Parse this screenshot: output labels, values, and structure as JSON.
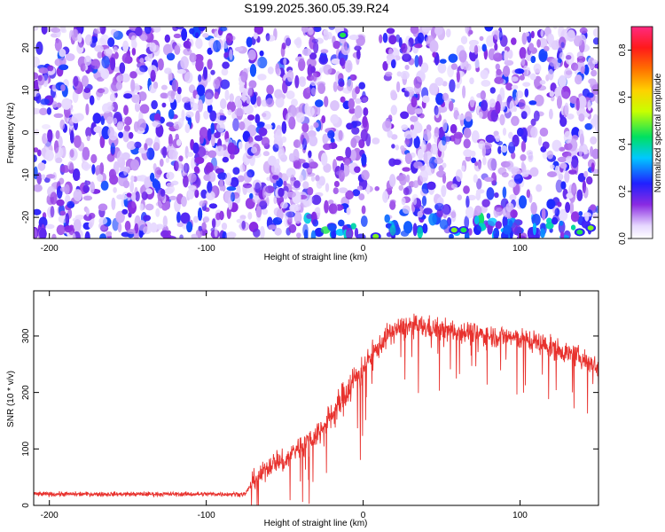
{
  "title": "S199.2025.360.05.39.R24",
  "chart_data": [
    {
      "type": "heatmap",
      "xlabel": "Height of straight line (km)",
      "ylabel": "Frequency (Hz)",
      "xlim": [
        -210,
        150
      ],
      "ylim": [
        -25,
        25
      ],
      "x_ticks": [
        -200,
        -100,
        0,
        100
      ],
      "y_ticks": [
        -20,
        -10,
        0,
        10,
        20
      ],
      "grid": false,
      "colormap": "rainbow (purple to red)",
      "colorbar": {
        "label": "Normalized spectral amplitude",
        "range": [
          0,
          0.9
        ],
        "ticks": [
          0.0,
          0.2,
          0.4,
          0.6,
          0.8
        ]
      },
      "notes_pattern": "speckled amplitude field ~0.05-0.25 everywhere; gap near 0-15 km; strong amplitude band near -25 Hz for x > 0",
      "hot_spots": [
        {
          "x": -13,
          "y": 23,
          "value": 0.45
        },
        {
          "x": 8,
          "y": -24.5,
          "value": 0.5
        },
        {
          "x": 58,
          "y": -23,
          "value": 0.5
        },
        {
          "x": 64,
          "y": -23,
          "value": 0.45
        },
        {
          "x": 138,
          "y": -23.5,
          "value": 0.45
        },
        {
          "x": 145,
          "y": -22.5,
          "value": 0.5
        }
      ]
    },
    {
      "type": "line",
      "xlabel": "Height of straight line (km)",
      "ylabel": "SNR (10 * v/v)",
      "xlim": [
        -210,
        150
      ],
      "ylim": [
        0,
        380
      ],
      "x_ticks": [
        -200,
        -100,
        0,
        100
      ],
      "y_ticks": [
        0,
        100,
        200,
        300
      ],
      "grid": false,
      "series": [
        {
          "color": "#e8322e",
          "x": [
            -210,
            -150,
            -100,
            -75,
            -70,
            -65,
            -60,
            -55,
            -50,
            -45,
            -40,
            -35,
            -30,
            -25,
            -20,
            -15,
            -10,
            -5,
            0,
            5,
            10,
            15,
            20,
            25,
            30,
            40,
            50,
            60,
            70,
            80,
            90,
            100,
            110,
            120,
            130,
            140,
            150
          ],
          "y": [
            20,
            20,
            20,
            20,
            45,
            55,
            70,
            80,
            75,
            95,
            105,
            115,
            125,
            140,
            160,
            180,
            205,
            225,
            245,
            265,
            280,
            300,
            310,
            315,
            318,
            315,
            310,
            310,
            305,
            300,
            300,
            295,
            290,
            280,
            270,
            260,
            245
          ]
        }
      ]
    }
  ]
}
